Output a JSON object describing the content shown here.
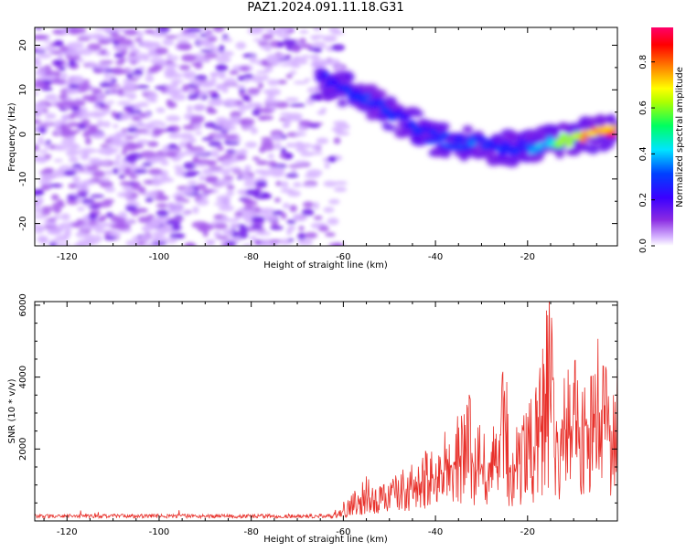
{
  "figure": {
    "title": "PAZ1.2024.091.11.18.G31"
  },
  "chart_data": [
    {
      "type": "heatmap",
      "xlabel": "Height of straight line (km)",
      "ylabel": "Frequency (Hz)",
      "xlim": [
        -127,
        -0.5
      ],
      "ylim": [
        -25,
        24
      ],
      "x_ticks": [
        -120,
        -100,
        -80,
        -60,
        -40,
        -20
      ],
      "y_ticks": [
        -20,
        -10,
        0,
        10,
        20
      ],
      "noise_region": {
        "x_range": [
          -127,
          -60
        ],
        "y_range": [
          -25,
          24
        ],
        "description_level": "low"
      },
      "ridge": {
        "x": [
          -65,
          -60,
          -55,
          -50,
          -45,
          -40,
          -35,
          -30,
          -25,
          -20,
          -15,
          -10,
          -5,
          -1
        ],
        "y": [
          13,
          10,
          8,
          5,
          2,
          -1,
          -2,
          -2,
          -3,
          -3,
          -2,
          -1,
          0,
          1
        ],
        "amplitude": [
          0.25,
          0.3,
          0.3,
          0.28,
          0.3,
          0.3,
          0.35,
          0.35,
          0.3,
          0.32,
          0.5,
          0.75,
          0.9,
          0.95
        ]
      },
      "colorbar": {
        "label": "Normalized spectral amplitude",
        "range": [
          0.0,
          0.95
        ],
        "ticks": [
          0.0,
          0.2,
          0.4,
          0.6,
          0.8
        ],
        "tick_labels": [
          "0.0",
          "0.2",
          "0.4",
          "0.6",
          "0.8"
        ],
        "colormap": "gist_rainbow_r"
      },
      "grid": false
    },
    {
      "type": "line",
      "xlabel": "Height of straight line (km)",
      "ylabel": "SNR (10 * v/v)",
      "xlim": [
        -127,
        -0.5
      ],
      "ylim": [
        0,
        6100
      ],
      "x_ticks": [
        -120,
        -100,
        -80,
        -60,
        -40,
        -20
      ],
      "y_ticks": [
        2000,
        4000,
        6000
      ],
      "color": "#e8302a",
      "series": [
        {
          "x": [
            -127,
            -120,
            -110,
            -100,
            -90,
            -80,
            -70,
            -65,
            -62,
            -60,
            -58,
            -55,
            -53,
            -50,
            -48,
            -45,
            -43,
            -40,
            -38,
            -35,
            -33,
            -31,
            -28,
            -26,
            -25,
            -24,
            -22,
            -20,
            -18,
            -16,
            -15,
            -14,
            -12,
            -10,
            -8,
            -6,
            -4,
            -2,
            -1,
            -0.5
          ],
          "y": [
            120,
            150,
            130,
            120,
            140,
            120,
            150,
            200,
            300,
            500,
            700,
            1300,
            900,
            1000,
            1300,
            1500,
            1800,
            2000,
            2400,
            2800,
            3500,
            2500,
            2700,
            2200,
            5500,
            1800,
            2700,
            3000,
            3600,
            5500,
            6100,
            2500,
            4000,
            4500,
            4200,
            3800,
            5400,
            4400,
            3200,
            4300
          ]
        }
      ],
      "grid": false
    }
  ]
}
